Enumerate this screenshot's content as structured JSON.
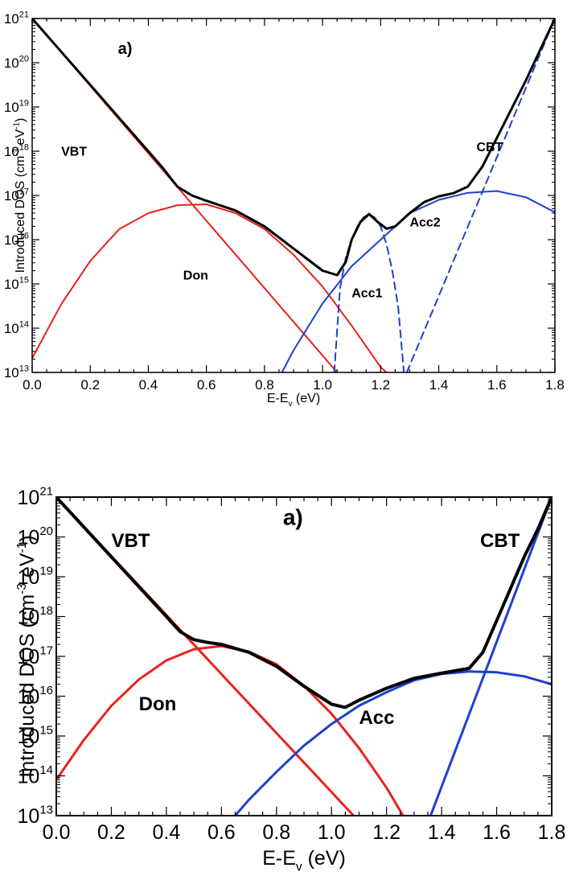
{
  "chart_data": [
    {
      "type": "line",
      "panel_label": "a)",
      "xlabel": "E-E",
      "xlabel_sub": "v",
      "xlabel_unit": "(eV)",
      "ylabel": "Introduced DOS (cm",
      "ylabel_sup1": "-3",
      "ylabel_mid": " eV",
      "ylabel_sup2": "-1",
      "ylabel_end": ")",
      "xlim": [
        0,
        1.8
      ],
      "ylim_log10": [
        13,
        21
      ],
      "y_scale": "log",
      "x_tick_labels": [
        "0.0",
        "0.2",
        "0.4",
        "0.6",
        "0.8",
        "1.0",
        "1.2",
        "1.4",
        "1.6",
        "1.8"
      ],
      "y_tick_base": "10",
      "y_tick_exponents": [
        "13",
        "14",
        "15",
        "16",
        "17",
        "18",
        "19",
        "20",
        "21"
      ],
      "annotations": [
        {
          "text": "VBT",
          "x": 0.1,
          "log10_y": 17.9
        },
        {
          "text": "Don",
          "x": 0.52,
          "log10_y": 15.1
        },
        {
          "text": "Acc1",
          "x": 1.1,
          "log10_y": 14.7
        },
        {
          "text": "Acc2",
          "x": 1.3,
          "log10_y": 16.3
        },
        {
          "text": "CBT",
          "x": 1.53,
          "log10_y": 18.0
        }
      ],
      "series": [
        {
          "id": "vbt",
          "color": "#e8221c",
          "dash": false,
          "width": 2,
          "x": [
            0.0,
            1.05
          ],
          "log10_y": [
            21.0,
            13.0
          ]
        },
        {
          "id": "don",
          "color": "#e8221c",
          "dash": false,
          "width": 2,
          "x": [
            0.0,
            0.1,
            0.2,
            0.3,
            0.4,
            0.5,
            0.6,
            0.7,
            0.8,
            0.9,
            1.0,
            1.1,
            1.2,
            1.22
          ],
          "log10_y": [
            13.32,
            14.54,
            15.52,
            16.24,
            16.6,
            16.78,
            16.8,
            16.6,
            16.24,
            15.66,
            14.94,
            14.06,
            13.12,
            13.0
          ]
        },
        {
          "id": "acc1",
          "color": "#1f3fd1",
          "dash": true,
          "width": 2,
          "x": [
            1.04,
            1.06,
            1.08,
            1.1,
            1.12,
            1.14,
            1.16,
            1.18,
            1.2,
            1.22,
            1.24,
            1.26,
            1.28
          ],
          "log10_y": [
            13.0,
            14.9,
            15.6,
            16.0,
            16.3,
            16.5,
            16.58,
            16.5,
            16.3,
            15.9,
            15.3,
            14.5,
            13.0
          ]
        },
        {
          "id": "acc2",
          "color": "#1f3fd1",
          "dash": false,
          "width": 2,
          "x": [
            0.86,
            0.9,
            1.0,
            1.1,
            1.2,
            1.3,
            1.4,
            1.5,
            1.6,
            1.7,
            1.8
          ],
          "log10_y": [
            13.0,
            13.5,
            14.56,
            15.4,
            16.0,
            16.6,
            16.9,
            17.06,
            17.1,
            16.96,
            16.62
          ]
        },
        {
          "id": "cbt",
          "color": "#1f3fd1",
          "dash": true,
          "width": 2,
          "x": [
            1.29,
            1.8
          ],
          "log10_y": [
            13.0,
            21.0
          ]
        },
        {
          "id": "total",
          "color": "#000000",
          "dash": false,
          "width": 3,
          "x": [
            0.0,
            0.1,
            0.2,
            0.3,
            0.4,
            0.45,
            0.5,
            0.55,
            0.6,
            0.7,
            0.8,
            0.9,
            1.0,
            1.05,
            1.08,
            1.1,
            1.13,
            1.16,
            1.19,
            1.22,
            1.25,
            1.3,
            1.35,
            1.4,
            1.45,
            1.5,
            1.55,
            1.6,
            1.65,
            1.7,
            1.75,
            1.8
          ],
          "log10_y": [
            21.0,
            20.25,
            19.5,
            18.75,
            18.0,
            17.62,
            17.2,
            17.0,
            16.88,
            16.66,
            16.3,
            15.8,
            15.3,
            15.2,
            15.5,
            16.0,
            16.4,
            16.58,
            16.4,
            16.25,
            16.3,
            16.6,
            16.85,
            16.98,
            17.05,
            17.2,
            17.65,
            18.3,
            18.95,
            19.6,
            20.3,
            21.0
          ]
        }
      ]
    },
    {
      "type": "line",
      "panel_label": "a)",
      "xlabel": "E-E",
      "xlabel_sub": "v",
      "xlabel_unit": "(eV)",
      "ylabel": "Introduced DOS (cm",
      "ylabel_sup1": "-3",
      "ylabel_mid": " eV",
      "ylabel_sup2": "-1",
      "ylabel_end": ")",
      "xlim": [
        0,
        1.8
      ],
      "ylim_log10": [
        13,
        21
      ],
      "y_scale": "log",
      "x_tick_labels": [
        "0.0",
        "0.2",
        "0.4",
        "0.6",
        "0.8",
        "1.0",
        "1.2",
        "1.4",
        "1.6",
        "1.8"
      ],
      "y_tick_base": "10",
      "y_tick_exponents": [
        "13",
        "14",
        "15",
        "16",
        "17",
        "18",
        "19",
        "20",
        "21"
      ],
      "annotations": [
        {
          "text": "VBT",
          "x": 0.2,
          "log10_y": 19.75
        },
        {
          "text": "Don",
          "x": 0.3,
          "log10_y": 15.65
        },
        {
          "text": "Acc",
          "x": 1.1,
          "log10_y": 15.3
        },
        {
          "text": "CBT",
          "x": 1.54,
          "log10_y": 19.75
        }
      ],
      "series": [
        {
          "id": "vbt",
          "color": "#e8221c",
          "dash": false,
          "width": 3,
          "x": [
            0.0,
            1.08
          ],
          "log10_y": [
            21.0,
            13.0
          ]
        },
        {
          "id": "don",
          "color": "#e8221c",
          "dash": false,
          "width": 3,
          "x": [
            0.0,
            0.1,
            0.2,
            0.3,
            0.4,
            0.5,
            0.6,
            0.7,
            0.8,
            0.9,
            1.0,
            1.1,
            1.2,
            1.26
          ],
          "log10_y": [
            13.9,
            14.9,
            15.76,
            16.42,
            16.9,
            17.18,
            17.26,
            17.12,
            16.8,
            16.26,
            15.56,
            14.7,
            13.7,
            13.0
          ]
        },
        {
          "id": "acc",
          "color": "#1f3fd1",
          "dash": false,
          "width": 3,
          "x": [
            0.65,
            0.7,
            0.8,
            0.9,
            1.0,
            1.1,
            1.2,
            1.3,
            1.4,
            1.5,
            1.6,
            1.7,
            1.8
          ],
          "log10_y": [
            13.0,
            13.4,
            14.1,
            14.76,
            15.3,
            15.76,
            16.1,
            16.4,
            16.56,
            16.62,
            16.6,
            16.5,
            16.3
          ]
        },
        {
          "id": "cbt",
          "color": "#1f3fd1",
          "dash": false,
          "width": 3,
          "x": [
            1.36,
            1.8
          ],
          "log10_y": [
            13.0,
            21.0
          ]
        },
        {
          "id": "total",
          "color": "#000000",
          "dash": false,
          "width": 4,
          "x": [
            0.0,
            0.1,
            0.2,
            0.3,
            0.4,
            0.45,
            0.5,
            0.55,
            0.6,
            0.7,
            0.8,
            0.9,
            1.0,
            1.05,
            1.1,
            1.2,
            1.3,
            1.4,
            1.5,
            1.55,
            1.6,
            1.65,
            1.7,
            1.75,
            1.8
          ],
          "log10_y": [
            21.0,
            20.25,
            19.5,
            18.75,
            18.0,
            17.62,
            17.42,
            17.35,
            17.3,
            17.1,
            16.75,
            16.25,
            15.8,
            15.72,
            15.9,
            16.2,
            16.45,
            16.58,
            16.7,
            17.1,
            17.9,
            18.7,
            19.5,
            20.2,
            21.0
          ]
        }
      ]
    }
  ]
}
